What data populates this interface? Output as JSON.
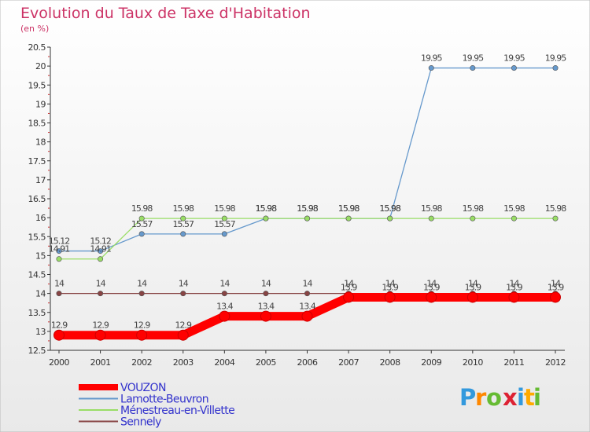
{
  "chart_data": {
    "type": "line",
    "title": "Evolution du Taux de Taxe d'Habitation",
    "subtitle": "(en %)",
    "xlabel": "",
    "ylabel": "",
    "categories": [
      "2000",
      "2001",
      "2002",
      "2003",
      "2004",
      "2005",
      "2006",
      "2007",
      "2008",
      "2009",
      "2010",
      "2011",
      "2012"
    ],
    "ylim": [
      12.5,
      20.5
    ],
    "yticks": [
      12.5,
      13,
      13.5,
      14,
      14.5,
      15,
      15.5,
      16,
      16.5,
      17,
      17.5,
      18,
      18.5,
      19,
      19.5,
      20,
      20.5
    ],
    "ytick_labels": [
      "12.5",
      "13",
      "13.5",
      "14",
      "14.5",
      "15",
      "15.5",
      "16",
      "16.5",
      "17",
      "17.5",
      "18",
      "18.5",
      "19",
      "19.5",
      "20",
      "20.5"
    ],
    "grid": false,
    "legend_position": "bottom-left",
    "series": [
      {
        "name": "VOUZON",
        "color": "#ff0000",
        "emphasis": true,
        "values": [
          12.9,
          12.9,
          12.9,
          12.9,
          13.4,
          13.4,
          13.4,
          13.9,
          13.9,
          13.9,
          13.9,
          13.9,
          13.9
        ],
        "labels": [
          "12.9",
          "12.9",
          "12.9",
          "12.9",
          "13.4",
          "13.4",
          "13.4",
          "13.9",
          "13.9",
          "13.9",
          "13.9",
          "13.9",
          "13.9"
        ]
      },
      {
        "name": "Lamotte-Beuvron",
        "color": "#6699cc",
        "values": [
          15.12,
          15.12,
          15.57,
          15.57,
          15.57,
          15.98,
          15.98,
          15.98,
          15.98,
          19.95,
          19.95,
          19.95,
          19.95
        ],
        "labels": [
          "15.12",
          "15.12",
          "15.57",
          "15.57",
          "15.57",
          "15.98",
          "15.98",
          "15.98",
          "15.98",
          "19.95",
          "19.95",
          "19.95",
          "19.95"
        ]
      },
      {
        "name": "Ménestreau-en-Villette",
        "color": "#99dd66",
        "values": [
          14.91,
          14.91,
          15.98,
          15.98,
          15.98,
          15.98,
          15.98,
          15.98,
          15.98,
          15.98,
          15.98,
          15.98,
          15.98
        ],
        "labels": [
          "14.91",
          "14.91",
          "15.98",
          "15.98",
          "15.98",
          "15.98",
          "15.98",
          "15.98",
          "15.98",
          "15.98",
          "15.98",
          "15.98",
          "15.98"
        ]
      },
      {
        "name": "Sennely",
        "color": "#884444",
        "values": [
          14,
          14,
          14,
          14,
          14,
          14,
          14,
          14,
          14,
          14,
          14,
          14,
          14
        ],
        "labels": [
          "14",
          "14",
          "14",
          "14",
          "14",
          "14",
          "14",
          "14",
          "14",
          "14",
          "14",
          "14",
          "14"
        ]
      }
    ]
  },
  "logo": {
    "text": "Proxiti"
  },
  "colors": {
    "background_top": "#ffffff",
    "background_bottom": "#e6e6e6",
    "title": "#cc3366",
    "axis": "#333333",
    "label": "#666666",
    "legend_text": "#3333cc"
  }
}
